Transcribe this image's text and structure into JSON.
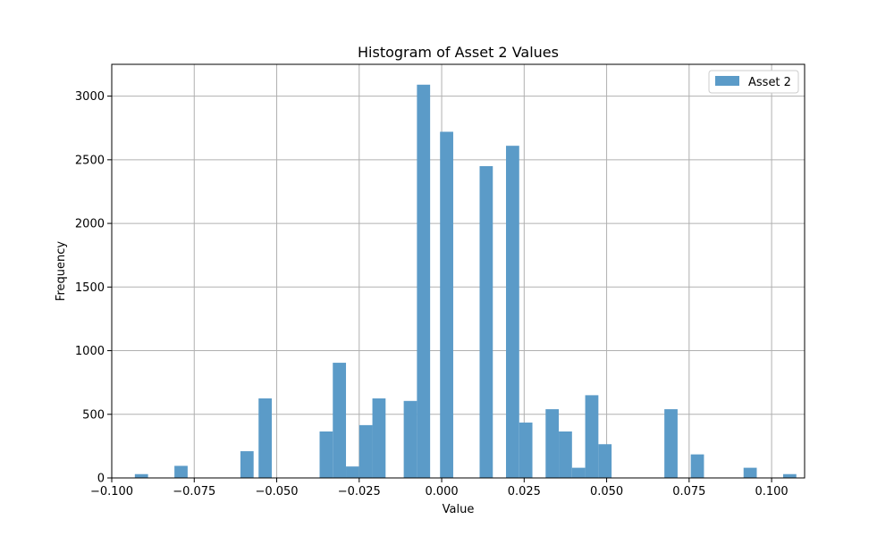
{
  "chart_data": {
    "type": "bar",
    "title": "Histogram of Asset 2 Values",
    "xlabel": "Value",
    "ylabel": "Frequency",
    "xlim": [
      -0.1,
      0.11
    ],
    "ylim": [
      0,
      3250
    ],
    "grid": true,
    "legend_placement": "top-right",
    "color": "#5b9bc8",
    "x_ticks": [
      -0.1,
      -0.075,
      -0.05,
      -0.025,
      0.0,
      0.025,
      0.05,
      0.075,
      0.1
    ],
    "x_tick_labels": [
      "−0.100",
      "−0.075",
      "−0.050",
      "−0.025",
      "0.000",
      "0.025",
      "0.050",
      "0.075",
      "0.100"
    ],
    "y_ticks": [
      0,
      500,
      1000,
      1500,
      2000,
      2500,
      3000
    ],
    "y_tick_labels": [
      "0",
      "500",
      "1000",
      "1500",
      "2000",
      "2500",
      "3000"
    ],
    "bin_width": 0.004,
    "series": [
      {
        "name": "Asset 2",
        "bins": [
          {
            "x": -0.091,
            "value": 30
          },
          {
            "x": -0.079,
            "value": 95
          },
          {
            "x": -0.059,
            "value": 210
          },
          {
            "x": -0.0535,
            "value": 625
          },
          {
            "x": -0.035,
            "value": 365
          },
          {
            "x": -0.031,
            "value": 905
          },
          {
            "x": -0.027,
            "value": 90
          },
          {
            "x": -0.023,
            "value": 415
          },
          {
            "x": -0.019,
            "value": 625
          },
          {
            "x": -0.0095,
            "value": 605
          },
          {
            "x": -0.0055,
            "value": 3090
          },
          {
            "x": 0.0015,
            "value": 2720
          },
          {
            "x": 0.0135,
            "value": 2450
          },
          {
            "x": 0.0215,
            "value": 2610
          },
          {
            "x": 0.0255,
            "value": 435
          },
          {
            "x": 0.0335,
            "value": 540
          },
          {
            "x": 0.0375,
            "value": 365
          },
          {
            "x": 0.0415,
            "value": 80
          },
          {
            "x": 0.0455,
            "value": 650
          },
          {
            "x": 0.0495,
            "value": 265
          },
          {
            "x": 0.0695,
            "value": 540
          },
          {
            "x": 0.0775,
            "value": 185
          },
          {
            "x": 0.0935,
            "value": 80
          },
          {
            "x": 0.1055,
            "value": 30
          }
        ]
      }
    ]
  }
}
